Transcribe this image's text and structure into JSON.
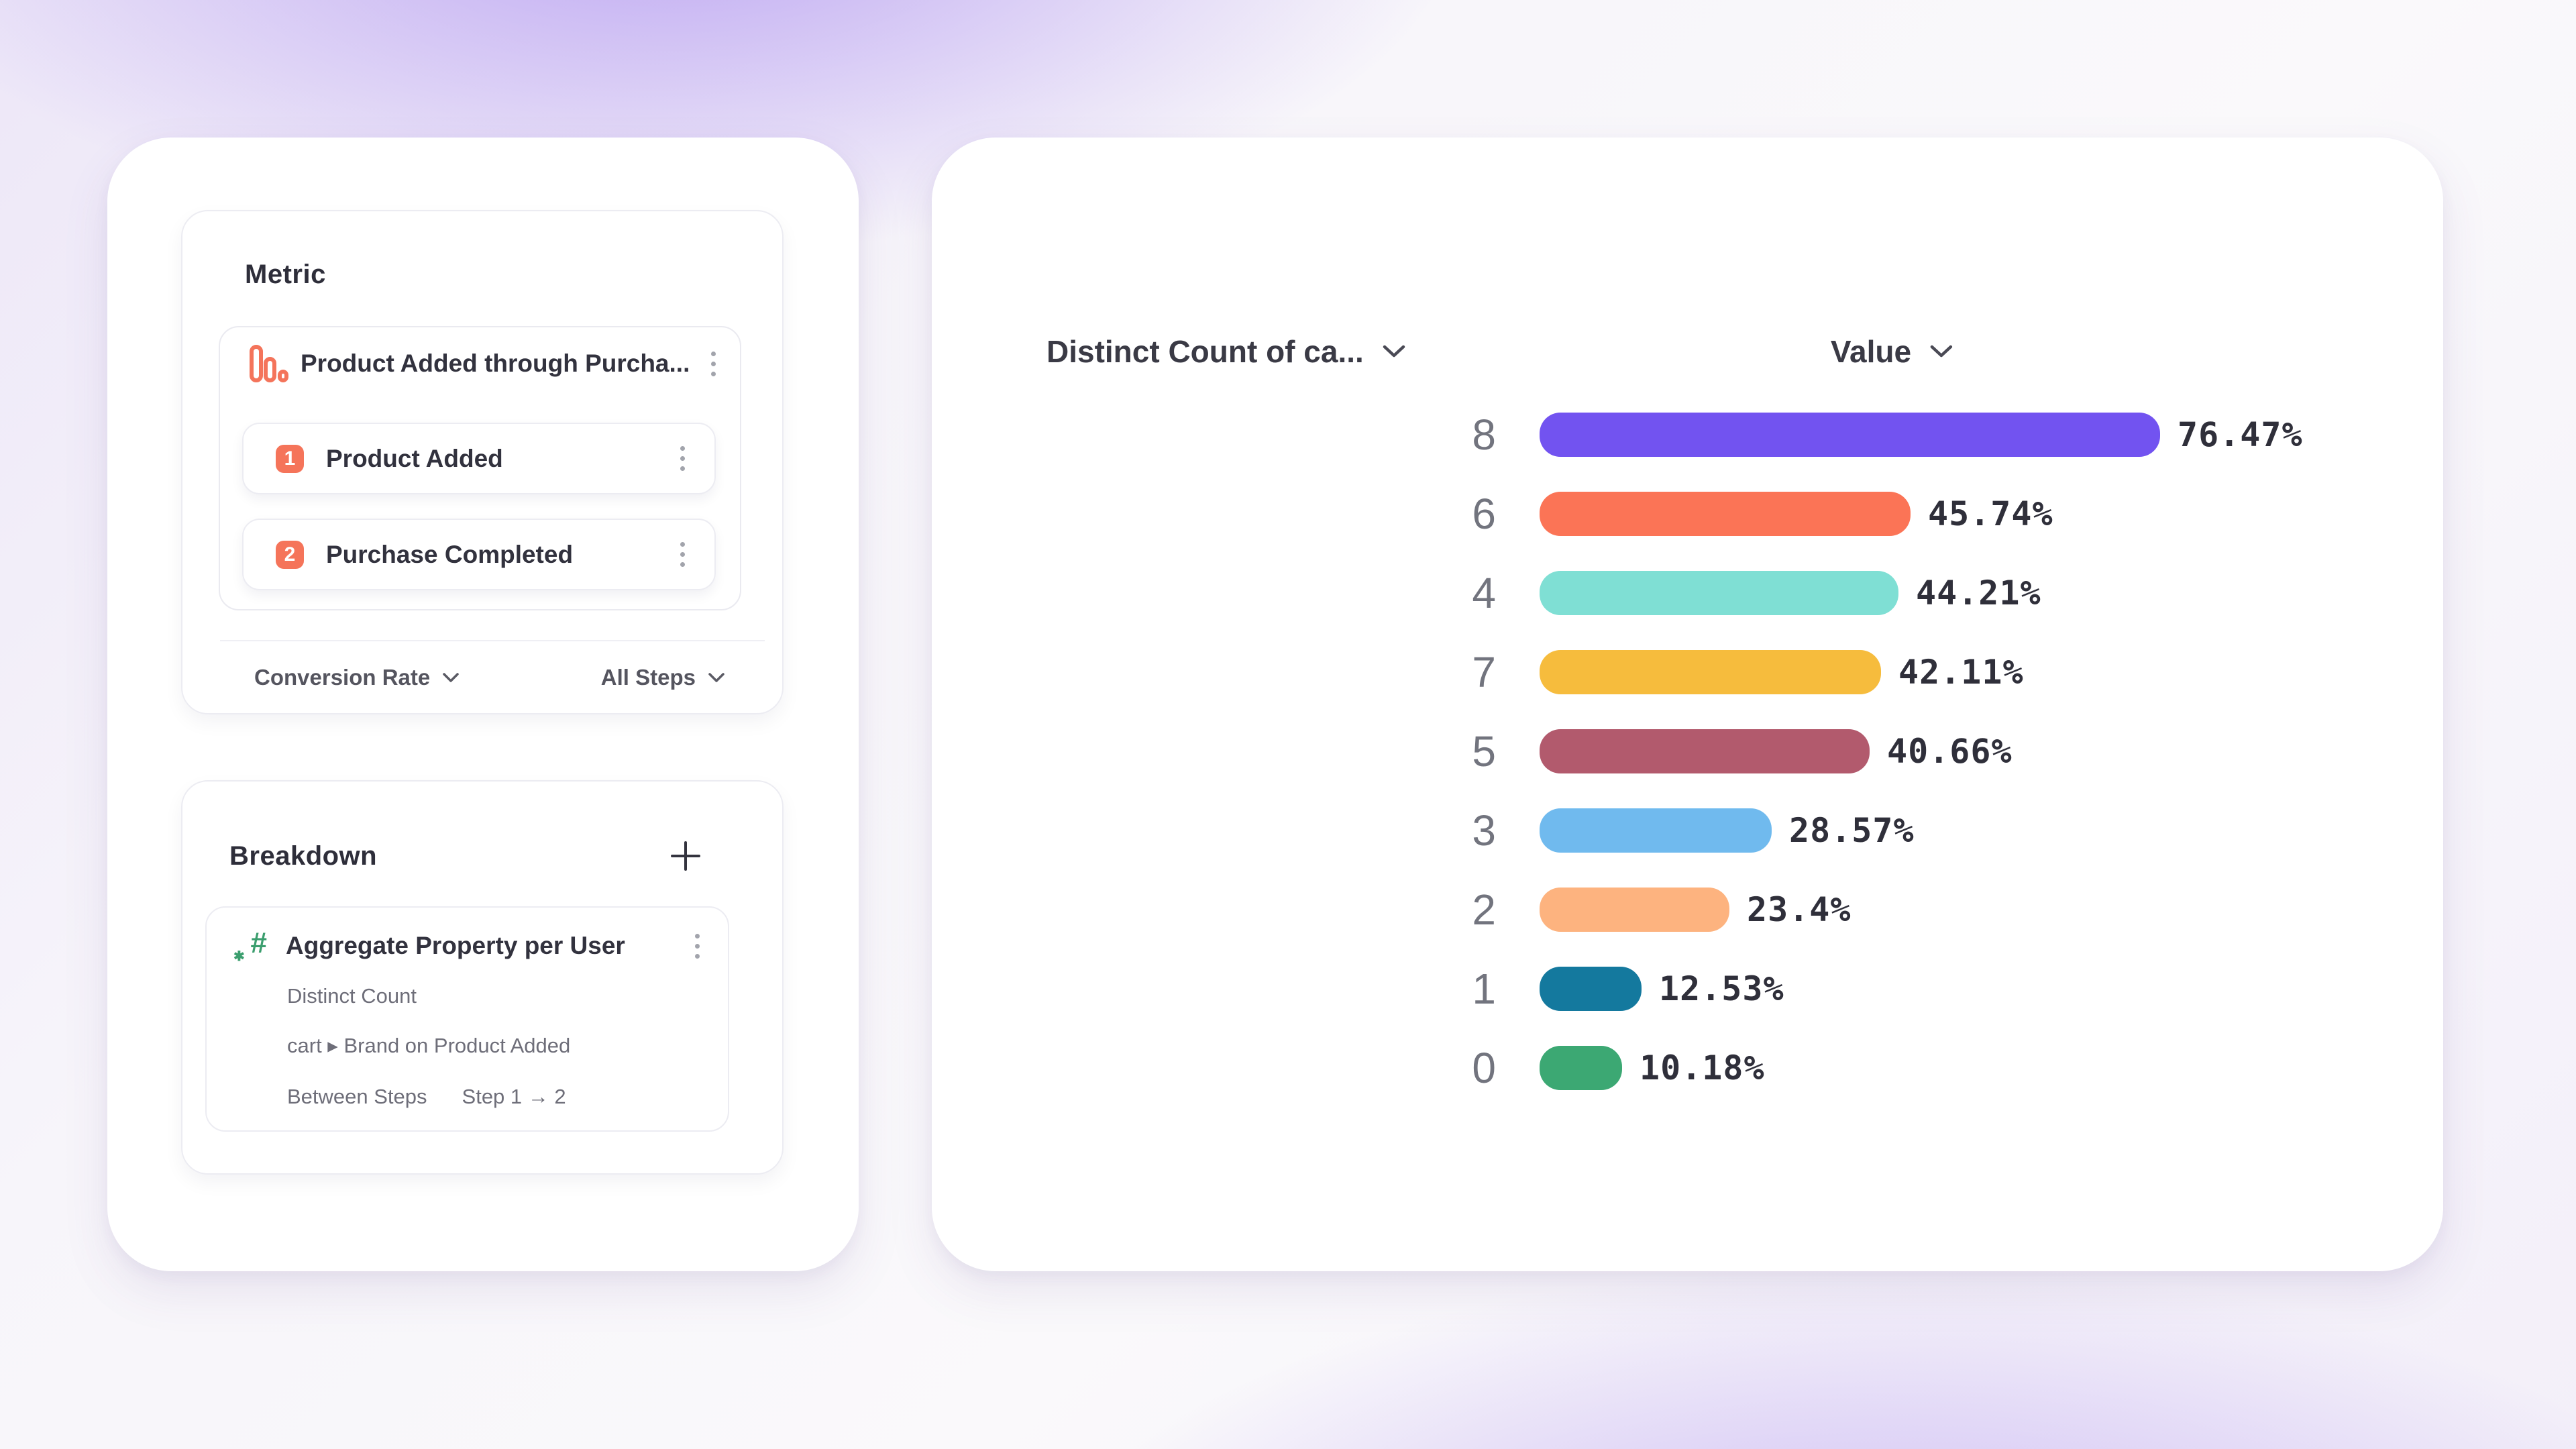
{
  "colors": {
    "accent_orange": "#F5745A",
    "accent_green": "#3B9E6E",
    "text_dark": "#32323E",
    "text_gray": "#6E6E79",
    "background_purple": "#926DEB"
  },
  "left_panel": {
    "metric": {
      "title": "Metric",
      "event_group": {
        "title": "Product Added through Purcha...",
        "steps": [
          {
            "index": "1",
            "label": "Product Added"
          },
          {
            "index": "2",
            "label": "Purchase Completed"
          }
        ]
      },
      "footer": {
        "conversion": "Conversion Rate",
        "steps_scope": "All Steps"
      }
    },
    "breakdown": {
      "title": "Breakdown",
      "item": {
        "title": "Aggregate Property per User",
        "aggregation": "Distinct Count",
        "property": "cart ▸ Brand on Product Added",
        "between_label": "Between Steps",
        "between_value": "Step 1 → 2"
      }
    }
  },
  "chart": {
    "column1_header": "Distinct Count of ca...",
    "column2_header": "Value"
  },
  "chart_data": {
    "type": "bar",
    "orientation": "horizontal",
    "title": "",
    "xlabel": "Value",
    "ylabel": "Distinct Count of ca...",
    "categories": [
      "8",
      "6",
      "4",
      "7",
      "5",
      "3",
      "2",
      "1",
      "0"
    ],
    "values": [
      76.47,
      45.74,
      44.21,
      42.11,
      40.66,
      28.57,
      23.4,
      12.53,
      10.18
    ],
    "value_labels": [
      "76.47%",
      "45.74%",
      "44.21%",
      "42.11%",
      "40.66%",
      "28.57%",
      "23.4%",
      "12.53%",
      "10.18%"
    ],
    "colors": [
      "#7253F0",
      "#FB7456",
      "#7FDFD4",
      "#F6BC3D",
      "#B25A6D",
      "#70BAEE",
      "#FDB37F",
      "#14799E",
      "#3CA873"
    ],
    "xlim": [
      0,
      100
    ],
    "grid": false,
    "legend": false
  }
}
